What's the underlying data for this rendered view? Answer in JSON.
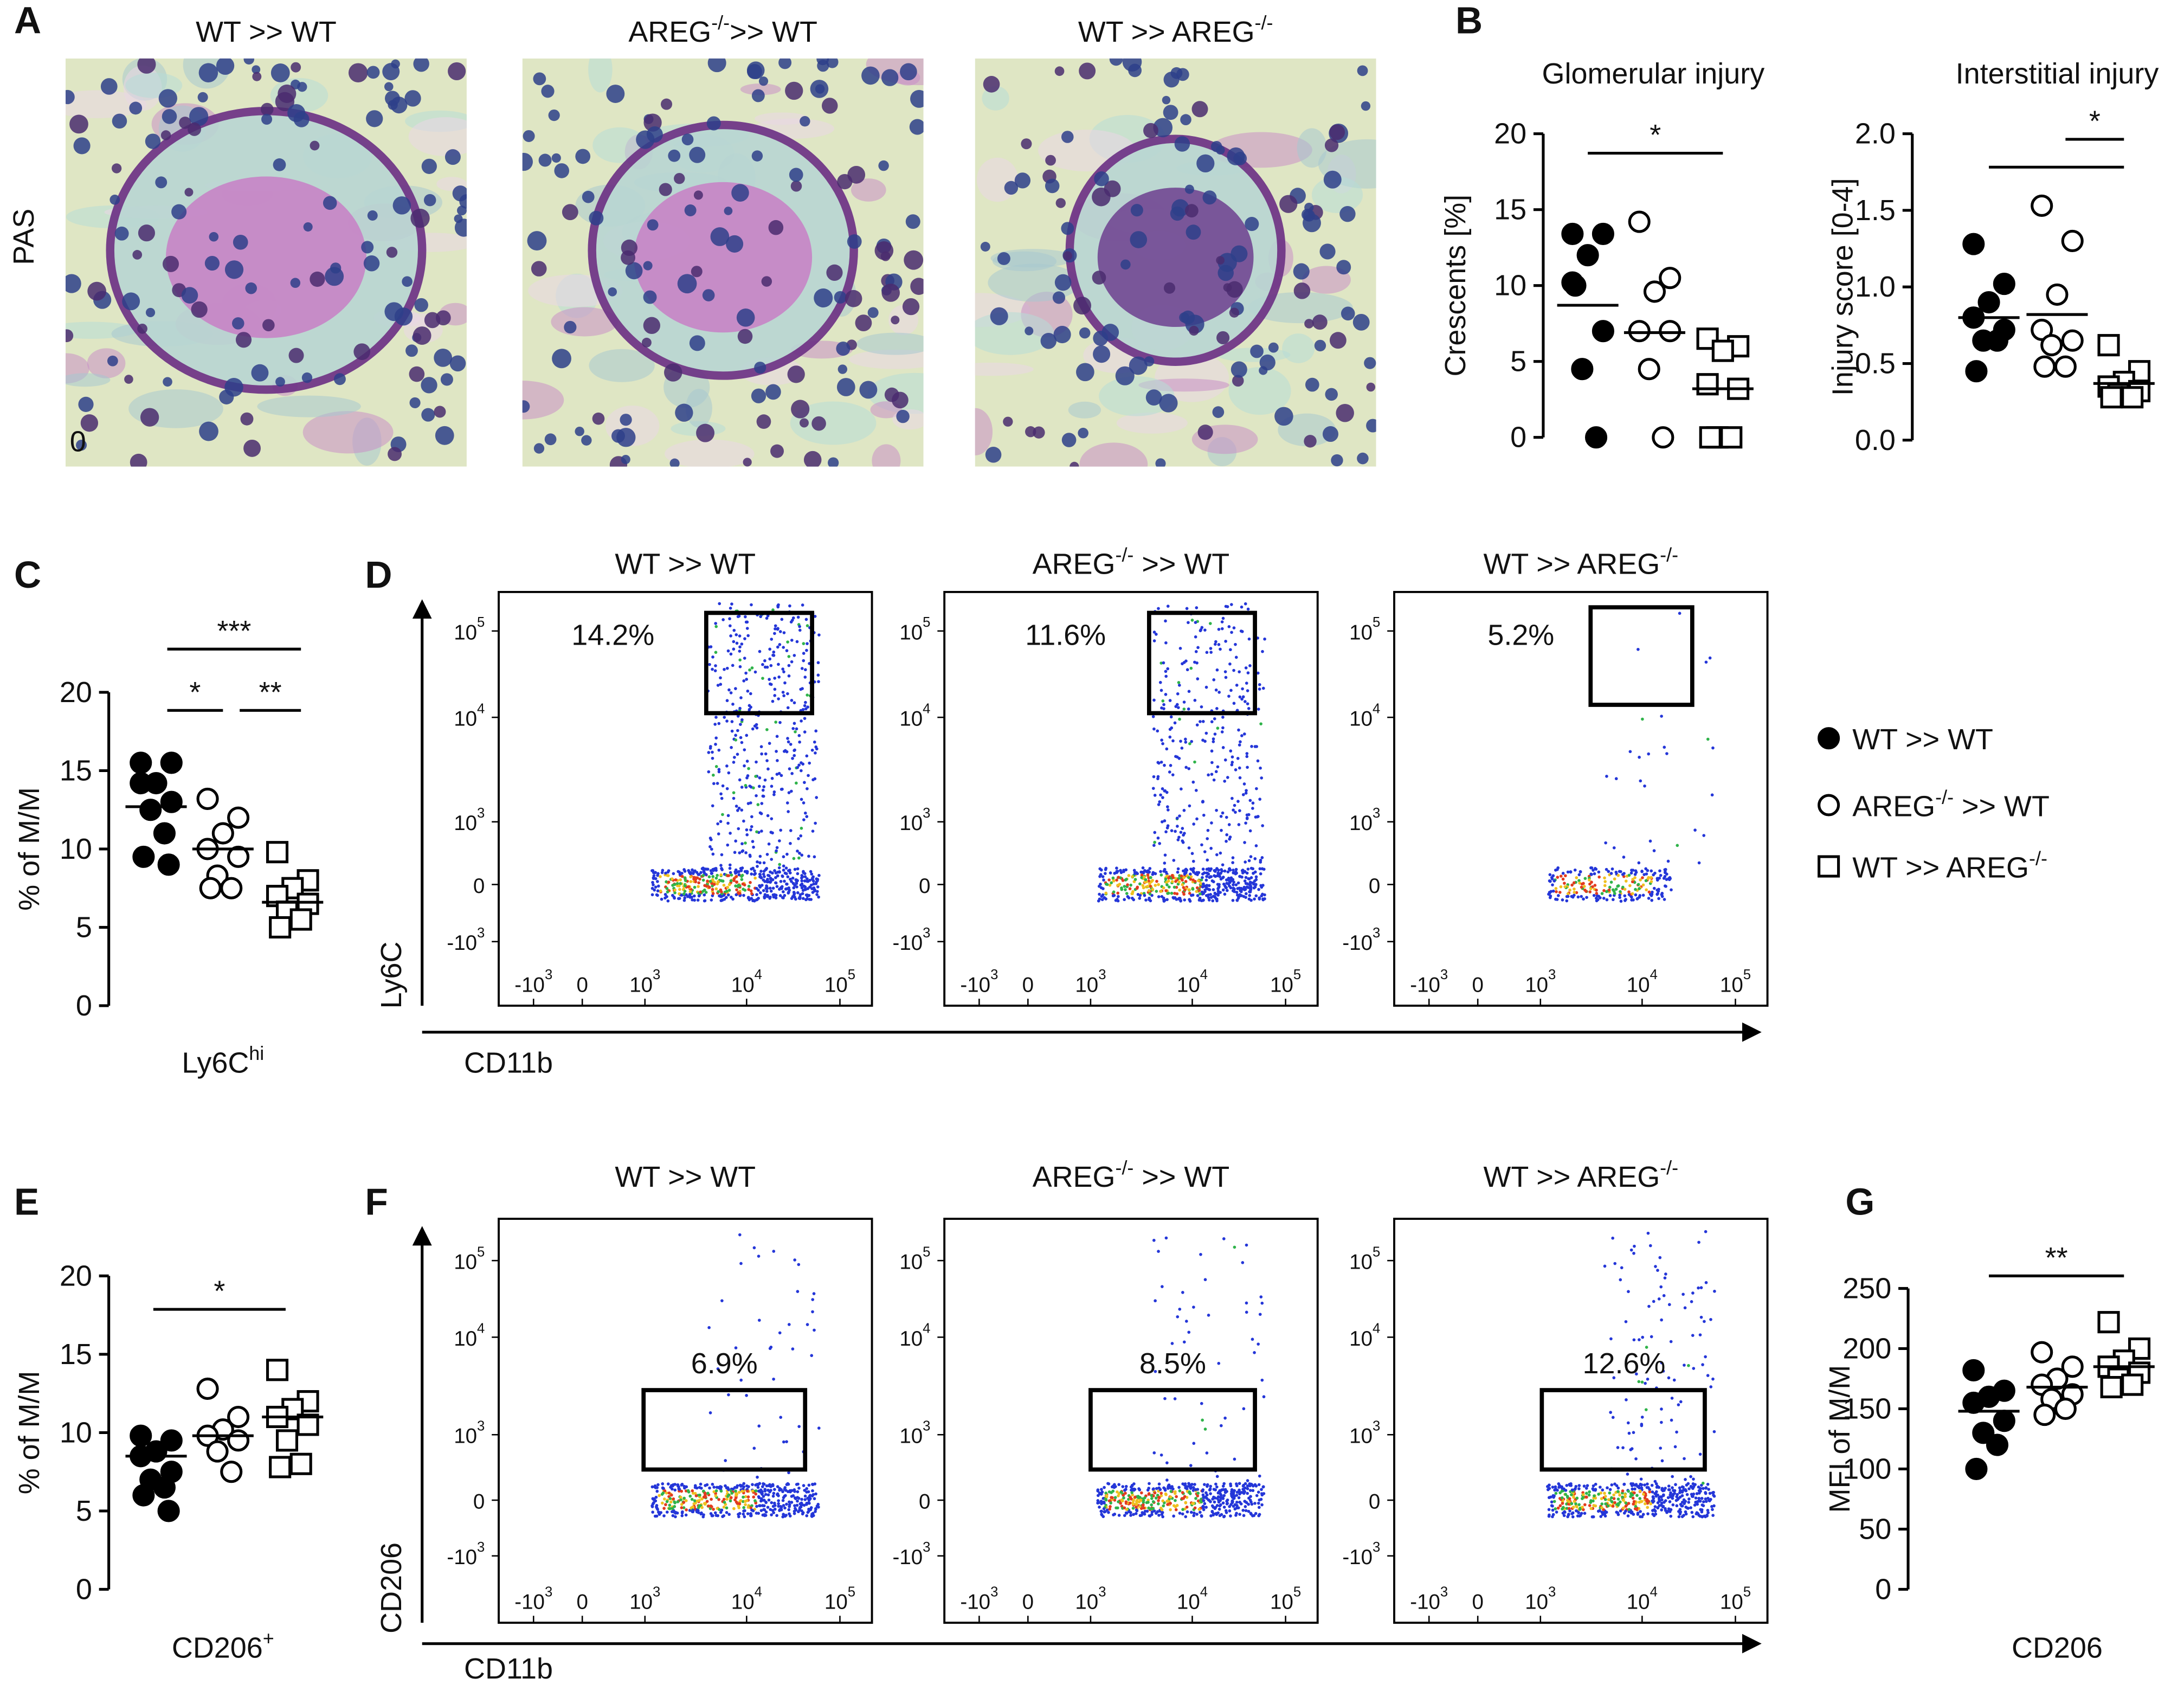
{
  "panel_labels": [
    "A",
    "B",
    "C",
    "D",
    "E",
    "F",
    "G"
  ],
  "histology": {
    "stain": "PAS",
    "scale_text": "0",
    "titles": [
      {
        "text": "WT >> WT"
      },
      {
        "text": "AREG",
        "sup": "-/-",
        "after": ">> WT"
      },
      {
        "text": "WT >> AREG",
        "sup": "-/-"
      }
    ]
  },
  "groups": [
    {
      "text": "WT >> WT"
    },
    {
      "text": "AREG",
      "sup": "-/-",
      "after": " >> WT"
    },
    {
      "text": "WT >> AREG",
      "sup": "-/-"
    }
  ],
  "legend": [
    {
      "marker": "filled-circle"
    },
    {
      "marker": "open-circle"
    },
    {
      "marker": "open-square"
    }
  ],
  "chart_data": [
    {
      "type": "dot",
      "title": "Glomerular injury",
      "ylabel": "Crescents [%]",
      "ylim": [
        0,
        20
      ],
      "yticks": [
        0,
        5,
        10,
        15,
        20
      ],
      "significance": [
        "*"
      ],
      "series": [
        {
          "marker": "filled-circle",
          "values": [
            13.4,
            13.4,
            12,
            10.2,
            7,
            4.5,
            0,
            10
          ],
          "mean": 8.7
        },
        {
          "marker": "open-circle",
          "values": [
            14.2,
            10.5,
            9.6,
            7,
            7,
            4.5,
            0
          ],
          "mean": 6.9
        },
        {
          "marker": "open-square",
          "values": [
            6.5,
            6,
            5.7,
            3.5,
            3.2,
            0,
            0,
            0
          ],
          "mean": 3.2
        }
      ]
    },
    {
      "type": "dot",
      "title": "Interstitial injury",
      "ylabel": "Injury score [0-4]",
      "ylim": [
        0,
        2
      ],
      "yticks": [
        {
          "value": 0,
          "label": "0.0"
        },
        0.5,
        {
          "value": 1,
          "label": "1.0"
        },
        1.5,
        {
          "value": 2,
          "label": "2.0"
        }
      ],
      "significance": [
        "*"
      ],
      "series": [
        {
          "marker": "filled-circle",
          "values": [
            1.28,
            1.02,
            0.9,
            0.8,
            0.72,
            0.65,
            0.65,
            0.45
          ],
          "mean": 0.8
        },
        {
          "marker": "open-circle",
          "values": [
            1.53,
            1.3,
            0.95,
            0.72,
            0.65,
            0.62,
            0.48,
            0.48
          ],
          "mean": 0.82
        },
        {
          "marker": "open-square",
          "values": [
            0.62,
            0.45,
            0.38,
            0.35,
            0.32,
            0.3,
            0.28,
            0.28
          ],
          "mean": 0.37
        }
      ]
    },
    {
      "type": "dot",
      "ylabel": "% of M/M",
      "xlabel": {
        "text": "Ly6C",
        "sup": "hi"
      },
      "ylim": [
        0,
        20
      ],
      "yticks": [
        0,
        5,
        10,
        15,
        20
      ],
      "significance": [
        "***",
        "*",
        "**"
      ],
      "series": [
        {
          "marker": "filled-circle",
          "values": [
            15.5,
            15.5,
            14.2,
            14.2,
            13,
            12.5,
            11,
            9.5,
            9
          ],
          "mean": 12.7
        },
        {
          "marker": "open-circle",
          "values": [
            13.2,
            12,
            11,
            10,
            9.5,
            8.3,
            7.5,
            7.5
          ],
          "mean": 10
        },
        {
          "marker": "open-square",
          "values": [
            9.8,
            8,
            7.5,
            7,
            6.5,
            6,
            5.5,
            5
          ],
          "mean": 6.6
        }
      ]
    },
    {
      "type": "dot",
      "ylabel": "% of M/M",
      "xlabel": {
        "text": "CD206",
        "sup": "+"
      },
      "ylim": [
        0,
        20
      ],
      "yticks": [
        0,
        5,
        10,
        15,
        20
      ],
      "significance": [
        "*"
      ],
      "series": [
        {
          "marker": "filled-circle",
          "values": [
            9.8,
            9.5,
            8.8,
            8.5,
            7.5,
            7,
            6.5,
            6,
            5
          ],
          "mean": 8.5
        },
        {
          "marker": "open-circle",
          "values": [
            12.8,
            11,
            10.2,
            9.8,
            9.5,
            8.8,
            7.5
          ],
          "mean": 9.8
        },
        {
          "marker": "open-square",
          "values": [
            14,
            12,
            11.5,
            11,
            10.5,
            9.5,
            8,
            7.8
          ],
          "mean": 11
        }
      ]
    },
    {
      "type": "dot",
      "ylabel": "MFI of M/M",
      "xlabel": {
        "text": "CD206"
      },
      "ylim": [
        0,
        250
      ],
      "yticks": [
        0,
        50,
        100,
        150,
        200,
        250
      ],
      "significance": [
        "**"
      ],
      "series": [
        {
          "marker": "filled-circle",
          "values": [
            182,
            165,
            160,
            155,
            140,
            130,
            120,
            100
          ],
          "mean": 148
        },
        {
          "marker": "open-circle",
          "values": [
            197,
            185,
            175,
            170,
            162,
            158,
            150,
            145
          ],
          "mean": 168
        },
        {
          "marker": "open-square",
          "values": [
            222,
            200,
            190,
            185,
            180,
            175,
            170,
            168
          ],
          "mean": 185
        }
      ]
    }
  ],
  "flow": [
    {
      "ylabel": "Ly6C",
      "xlabel": "CD11b",
      "gates": [
        "14.2%",
        "11.6%",
        "5.2%"
      ]
    },
    {
      "ylabel": "CD206",
      "xlabel": "CD11b",
      "gates": [
        "6.9%",
        "8.5%",
        "12.6%"
      ]
    }
  ],
  "flow_ticks": [
    {
      "text": "-10",
      "sup": "3"
    },
    {
      "text": "0"
    },
    {
      "text": "10",
      "sup": "3"
    },
    {
      "text": "10",
      "sup": "4"
    },
    {
      "text": "10",
      "sup": "5"
    }
  ]
}
